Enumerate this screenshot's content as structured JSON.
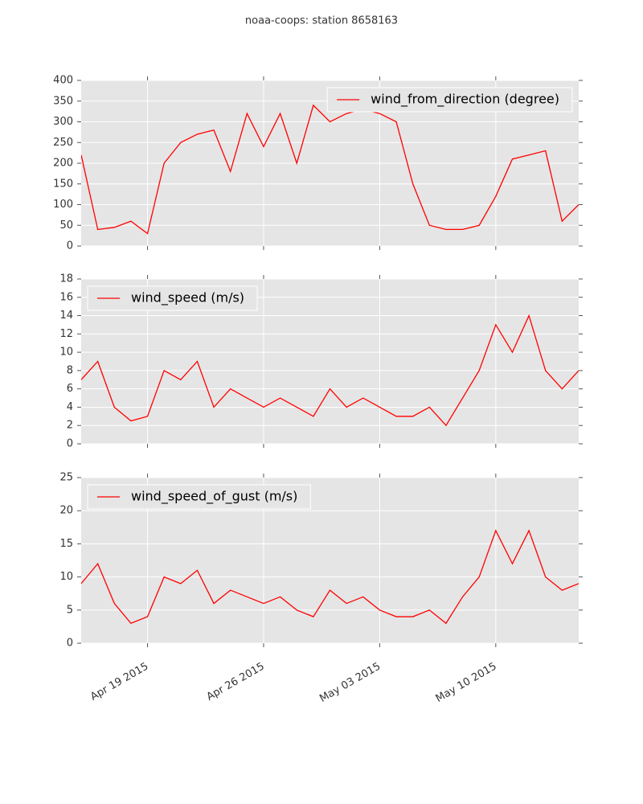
{
  "title": "noaa-coops: station 8658163",
  "chart_data": [
    {
      "type": "line",
      "legend": "upper right",
      "grid": true,
      "x": [
        "2015-04-15",
        "2015-04-16",
        "2015-04-17",
        "2015-04-18",
        "2015-04-19",
        "2015-04-20",
        "2015-04-21",
        "2015-04-22",
        "2015-04-23",
        "2015-04-24",
        "2015-04-25",
        "2015-04-26",
        "2015-04-27",
        "2015-04-28",
        "2015-04-29",
        "2015-04-30",
        "2015-05-01",
        "2015-05-02",
        "2015-05-03",
        "2015-05-04",
        "2015-05-05",
        "2015-05-06",
        "2015-05-07",
        "2015-05-08",
        "2015-05-09",
        "2015-05-10",
        "2015-05-11",
        "2015-05-12",
        "2015-05-13",
        "2015-05-14",
        "2015-05-15"
      ],
      "series": [
        {
          "name": "wind_from_direction (degree)",
          "color": "#ff0000",
          "values": [
            220,
            40,
            45,
            60,
            30,
            200,
            250,
            270,
            280,
            180,
            320,
            240,
            320,
            200,
            340,
            300,
            320,
            330,
            320,
            300,
            150,
            50,
            40,
            40,
            50,
            120,
            210,
            220,
            230,
            60,
            100
          ]
        }
      ],
      "xlim": [
        "2015-04-15",
        "2015-05-15"
      ],
      "xticks": [
        "2015-04-19",
        "2015-04-26",
        "2015-05-03",
        "2015-05-10"
      ],
      "ylim": [
        0,
        400
      ],
      "yticks": [
        0,
        50,
        100,
        150,
        200,
        250,
        300,
        350,
        400
      ]
    },
    {
      "type": "line",
      "legend": "upper left",
      "grid": true,
      "x": [
        "2015-04-15",
        "2015-04-16",
        "2015-04-17",
        "2015-04-18",
        "2015-04-19",
        "2015-04-20",
        "2015-04-21",
        "2015-04-22",
        "2015-04-23",
        "2015-04-24",
        "2015-04-25",
        "2015-04-26",
        "2015-04-27",
        "2015-04-28",
        "2015-04-29",
        "2015-04-30",
        "2015-05-01",
        "2015-05-02",
        "2015-05-03",
        "2015-05-04",
        "2015-05-05",
        "2015-05-06",
        "2015-05-07",
        "2015-05-08",
        "2015-05-09",
        "2015-05-10",
        "2015-05-11",
        "2015-05-12",
        "2015-05-13",
        "2015-05-14",
        "2015-05-15"
      ],
      "series": [
        {
          "name": "wind_speed (m/s)",
          "color": "#ff0000",
          "values": [
            7,
            9,
            4,
            2.5,
            3,
            8,
            7,
            9,
            4,
            6,
            5,
            4,
            5,
            4,
            3,
            6,
            4,
            5,
            4,
            3,
            3,
            4,
            2,
            5,
            8,
            13,
            10,
            14,
            8,
            6,
            8
          ]
        }
      ],
      "xlim": [
        "2015-04-15",
        "2015-05-15"
      ],
      "xticks": [
        "2015-04-19",
        "2015-04-26",
        "2015-05-03",
        "2015-05-10"
      ],
      "ylim": [
        0,
        18
      ],
      "yticks": [
        0,
        2,
        4,
        6,
        8,
        10,
        12,
        14,
        16,
        18
      ]
    },
    {
      "type": "line",
      "legend": "upper left",
      "grid": true,
      "x": [
        "2015-04-15",
        "2015-04-16",
        "2015-04-17",
        "2015-04-18",
        "2015-04-19",
        "2015-04-20",
        "2015-04-21",
        "2015-04-22",
        "2015-04-23",
        "2015-04-24",
        "2015-04-25",
        "2015-04-26",
        "2015-04-27",
        "2015-04-28",
        "2015-04-29",
        "2015-04-30",
        "2015-05-01",
        "2015-05-02",
        "2015-05-03",
        "2015-05-04",
        "2015-05-05",
        "2015-05-06",
        "2015-05-07",
        "2015-05-08",
        "2015-05-09",
        "2015-05-10",
        "2015-05-11",
        "2015-05-12",
        "2015-05-13",
        "2015-05-14",
        "2015-05-15"
      ],
      "series": [
        {
          "name": "wind_speed_of_gust (m/s)",
          "color": "#ff0000",
          "values": [
            9,
            12,
            6,
            3,
            4,
            10,
            9,
            11,
            6,
            8,
            7,
            6,
            7,
            5,
            4,
            8,
            6,
            7,
            5,
            4,
            4,
            5,
            3,
            7,
            10,
            17,
            12,
            17,
            10,
            8,
            9
          ]
        }
      ],
      "xlim": [
        "2015-04-15",
        "2015-05-15"
      ],
      "xticks": [
        {
          "value": "2015-04-19",
          "label": "Apr 19 2015"
        },
        {
          "value": "2015-04-26",
          "label": "Apr 26 2015"
        },
        {
          "value": "2015-05-03",
          "label": "May 03 2015"
        },
        {
          "value": "2015-05-10",
          "label": "May 10 2015"
        }
      ],
      "ylim": [
        0,
        25
      ],
      "yticks": [
        0,
        5,
        10,
        15,
        20,
        25
      ]
    }
  ]
}
